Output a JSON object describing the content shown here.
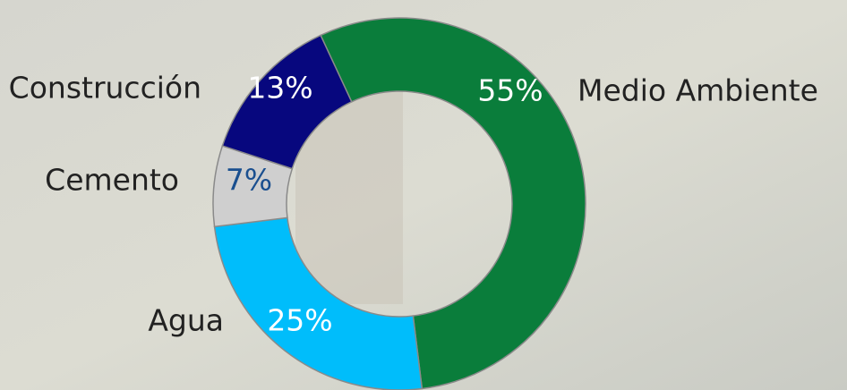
{
  "chart_data": {
    "type": "pie",
    "donut": true,
    "categories": [
      "Medio Ambiente",
      "Agua",
      "Cemento",
      "Construcción"
    ],
    "values": [
      55,
      25,
      7,
      13
    ],
    "value_labels": [
      "55%",
      "25%",
      "7%",
      "13%"
    ],
    "colors": [
      "#0a7d3b",
      "#00bdfb",
      "#cfcfcf",
      "#07077e"
    ]
  }
}
